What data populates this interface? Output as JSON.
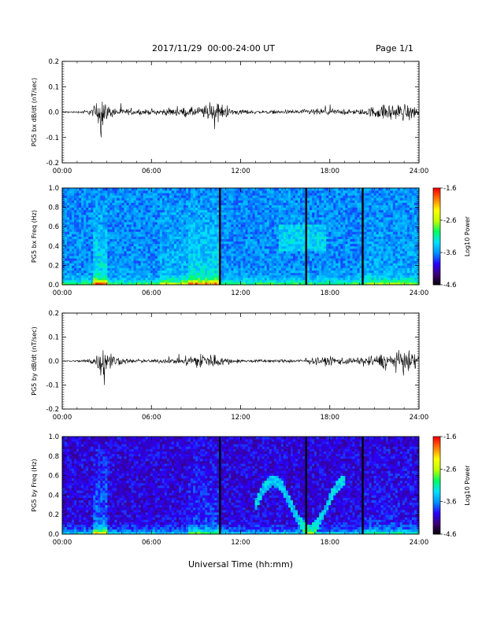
{
  "header": {
    "title": "2017/11/29  00:00-24:00 UT",
    "page": "Page 1/1"
  },
  "chart_data": [
    {
      "type": "line",
      "name": "bx-timeseries",
      "title": "",
      "ylabel": "PG5 bx dB/dt (nT/sec)",
      "xlabel": "",
      "xlim": [
        0,
        24
      ],
      "ylim": [
        -0.2,
        0.2
      ],
      "xticks": [
        "00:00",
        "06:00",
        "12:00",
        "18:00",
        "24:00"
      ],
      "yticks": [
        "-0.2",
        "-0.1",
        "0.0",
        "0.1",
        "0.2"
      ],
      "series": [
        {
          "values_description_hours": [
            0,
            1,
            2,
            2.5,
            2.6,
            2.75,
            3,
            4,
            5,
            6,
            7,
            8,
            9,
            10,
            10.5,
            11,
            12,
            13,
            14,
            15,
            16,
            17,
            18,
            19,
            20,
            21,
            22,
            23,
            24
          ],
          "amplitude": [
            0.005,
            0.005,
            0.02,
            0.09,
            0.15,
            0.1,
            0.04,
            0.02,
            0.015,
            0.015,
            0.02,
            0.025,
            0.03,
            0.05,
            0.06,
            0.03,
            0.015,
            0.01,
            0.01,
            0.01,
            0.015,
            0.02,
            0.02,
            0.015,
            0.015,
            0.035,
            0.05,
            0.05,
            0.035
          ]
        }
      ]
    },
    {
      "type": "heatmap",
      "name": "bx-spectrogram",
      "title": "",
      "ylabel": "PG5 bx Freq (Hz)",
      "xlim": [
        0,
        24
      ],
      "ylim": [
        0.0,
        1.0
      ],
      "xticks": [
        "00:00",
        "06:00",
        "12:00",
        "18:00",
        "24:00"
      ],
      "yticks": [
        "0.0",
        "0.2",
        "0.4",
        "0.6",
        "0.8",
        "1.0"
      ],
      "colorbar": {
        "label": "Log10 Power",
        "min": -4.6,
        "max": -1.6,
        "ticks": [
          "-1.6",
          "-2.6",
          "-3.6",
          "-4.6"
        ]
      },
      "gaps_hours": [
        10.6,
        16.4,
        20.2
      ]
    },
    {
      "type": "line",
      "name": "by-timeseries",
      "title": "",
      "ylabel": "PG5 by dB/dt (nT/sec)",
      "xlabel": "",
      "xlim": [
        0,
        24
      ],
      "ylim": [
        -0.2,
        0.2
      ],
      "xticks": [
        "00:00",
        "06:00",
        "12:00",
        "18:00",
        "24:00"
      ],
      "yticks": [
        "-0.2",
        "-0.1",
        "0.0",
        "0.1",
        "0.2"
      ],
      "series": [
        {
          "values_description_hours": [
            0,
            1,
            2,
            2.5,
            2.75,
            3,
            4,
            5,
            6,
            7,
            8,
            9,
            9.5,
            10,
            11,
            12,
            13,
            14,
            15,
            16,
            17,
            18,
            19,
            20,
            21,
            22,
            23,
            24
          ],
          "amplitude": [
            0.003,
            0.005,
            0.02,
            0.06,
            0.13,
            0.06,
            0.02,
            0.01,
            0.01,
            0.015,
            0.02,
            0.04,
            0.06,
            0.05,
            0.02,
            0.01,
            0.01,
            0.01,
            0.01,
            0.01,
            0.02,
            0.03,
            0.025,
            0.02,
            0.04,
            0.05,
            0.06,
            0.05
          ]
        }
      ]
    },
    {
      "type": "heatmap",
      "name": "by-spectrogram",
      "title": "",
      "ylabel": "PG5 by Freq (Hz)",
      "xlabel": "Universal Time (hh:mm)",
      "xlim": [
        0,
        24
      ],
      "ylim": [
        0.0,
        1.0
      ],
      "xticks": [
        "00:00",
        "06:00",
        "12:00",
        "18:00",
        "24:00"
      ],
      "yticks": [
        "0.0",
        "0.2",
        "0.4",
        "0.6",
        "0.8",
        "1.0"
      ],
      "colorbar": {
        "label": "Log10 Power",
        "min": -4.6,
        "max": -1.6,
        "ticks": [
          "-1.6",
          "-2.6",
          "-3.6",
          "-4.6"
        ]
      },
      "gaps_hours": [
        10.6,
        16.4,
        20.2
      ]
    }
  ],
  "colors": {
    "trace": "#000000",
    "colormap": [
      "#000000",
      "#3c0070",
      "#2a00ff",
      "#0090ff",
      "#00e0ff",
      "#00ff60",
      "#c0ff00",
      "#ffff00",
      "#ff8000",
      "#ff0000"
    ]
  }
}
